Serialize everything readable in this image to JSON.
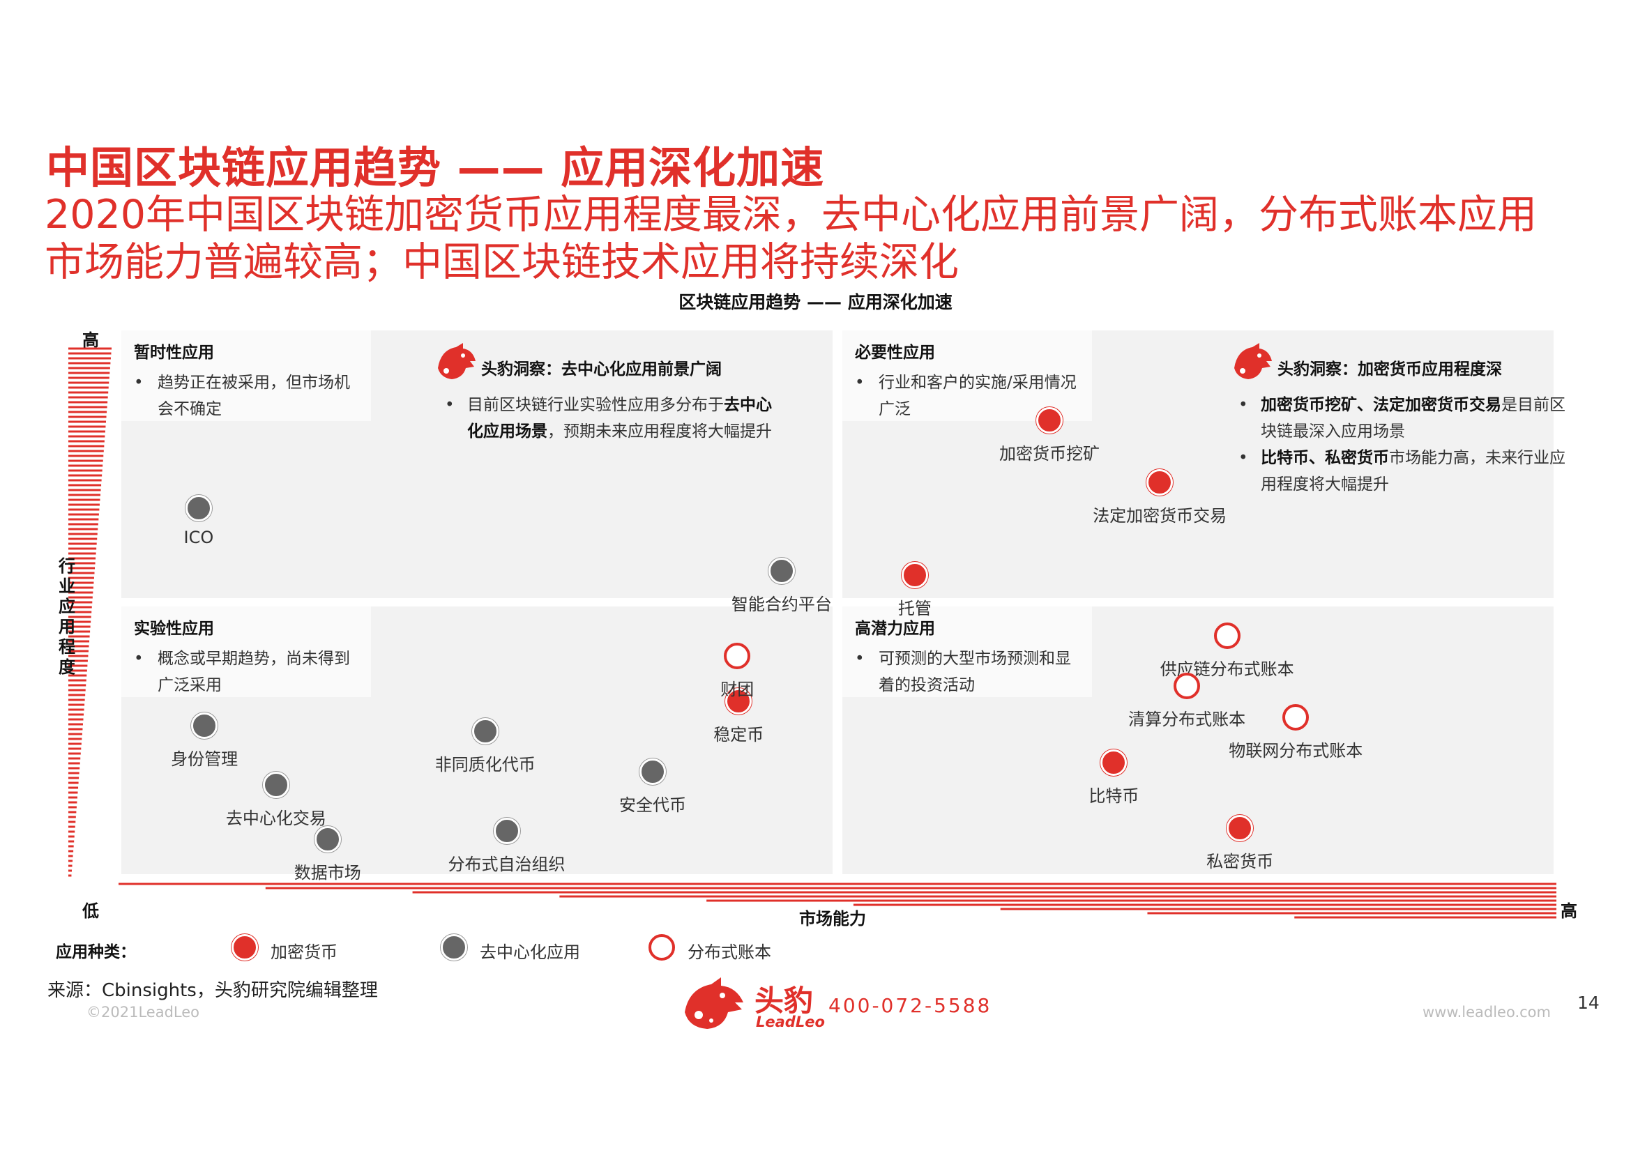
{
  "header": {
    "title": "中国区块链应用趋势 —— 应用深化加速",
    "subtitle_line1": "2020年中国区块链加密货币应用程度最深，去中心化应用前景广阔，分布式账本应用",
    "subtitle_line2": "市场能力普遍较高；中国区块链技术应用将持续深化"
  },
  "chart_data": {
    "type": "scatter",
    "title": "区块链应用趋势 —— 应用深化加速",
    "xlabel": "市场能力",
    "ylabel": "行业应用程度",
    "x_low_label": "低",
    "x_high_label": "高",
    "y_low_label": "低",
    "y_high_label": "高",
    "xlim": [
      0,
      100
    ],
    "ylim": [
      0,
      100
    ],
    "quadrants": [
      {
        "id": "tl",
        "title": "暂时性应用",
        "desc": "趋势正在被采用，但市场机会不确定"
      },
      {
        "id": "tr",
        "title": "必要性应用",
        "desc": "行业和客户的实施/采用情况广泛"
      },
      {
        "id": "bl",
        "title": "实验性应用",
        "desc": "概念或早期趋势，尚未得到广泛采用"
      },
      {
        "id": "br",
        "title": "高潜力应用",
        "desc": "可预测的大型市场预测和显着的投资活动"
      }
    ],
    "series": [
      {
        "name": "加密货币",
        "style": "red",
        "color": "#e0302a",
        "points": [
          {
            "label": "加密货币挖矿",
            "x": 64.8,
            "y": 83.5
          },
          {
            "label": "法定加密货币交易",
            "x": 72.5,
            "y": 72.0
          },
          {
            "label": "托管",
            "x": 55.4,
            "y": 55.0
          },
          {
            "label": "稳定币",
            "x": 43.1,
            "y": 31.8
          },
          {
            "label": "比特币",
            "x": 69.3,
            "y": 20.5
          },
          {
            "label": "私密货币",
            "x": 78.1,
            "y": 8.4
          }
        ]
      },
      {
        "name": "去中心化应用",
        "style": "gray",
        "color": "#666666",
        "points": [
          {
            "label": "ICO",
            "x": 5.4,
            "y": 67.3
          },
          {
            "label": "智能合约平台",
            "x": 46.1,
            "y": 55.8
          },
          {
            "label": "身份管理",
            "x": 5.8,
            "y": 27.3
          },
          {
            "label": "去中心化交易",
            "x": 10.8,
            "y": 16.4
          },
          {
            "label": "数据市场",
            "x": 14.4,
            "y": 6.4
          },
          {
            "label": "非同质化代币",
            "x": 25.4,
            "y": 26.3
          },
          {
            "label": "安全代币",
            "x": 37.1,
            "y": 18.9
          },
          {
            "label": "分布式自治组织",
            "x": 26.9,
            "y": 7.9
          }
        ]
      },
      {
        "name": "分布式账本",
        "style": "hollow",
        "color": "#e0302a",
        "points": [
          {
            "label": "财团",
            "x": 43.0,
            "y": 40.1
          },
          {
            "label": "供应链分布式账本",
            "x": 77.2,
            "y": 43.8
          },
          {
            "label": "清算分布式账本",
            "x": 74.4,
            "y": 34.6
          },
          {
            "label": "物联网分布式账本",
            "x": 82.0,
            "y": 28.9
          }
        ]
      }
    ]
  },
  "insights": [
    {
      "title": "头豹洞察：去中心化应用前景广阔",
      "lines": [
        {
          "pre": "目前区块链行业实验性应用多分布于",
          "bold": "去中心化应用场景",
          "post": "，预期未来应用程度将大幅提升"
        }
      ]
    },
    {
      "title": "头豹洞察：加密货币应用程度深",
      "lines": [
        {
          "pre": "",
          "bold": "加密货币挖矿、法定加密货币交易",
          "post": "是目前区块链最深入应用场景"
        },
        {
          "pre": "",
          "bold": "比特币、私密货币",
          "post": "市场能力高，未来行业应用程度将大幅提升"
        }
      ]
    }
  ],
  "legend": {
    "title": "应用种类：",
    "items": [
      "加密货币",
      "去中心化应用",
      "分布式账本"
    ]
  },
  "footer": {
    "source": "来源：Cbinsights，头豹研究院编辑整理",
    "copyright": "©2021LeadLeo",
    "brand_cn": "头豹",
    "brand_en": "LeadLeo",
    "phone": "400-072-5588",
    "website": "www.leadleo.com",
    "page_number": "14"
  },
  "colors": {
    "accent": "#e0302a",
    "quadrant_bg": "#f2f2f2",
    "gray_point": "#666666"
  }
}
